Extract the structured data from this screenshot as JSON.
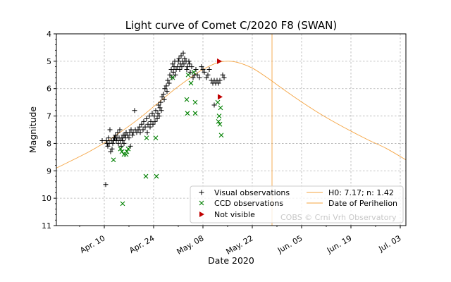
{
  "chart_data": {
    "type": "scatter",
    "title": "Light curve of Comet C/2020 F8 (SWAN)",
    "xlabel": "Date 2020",
    "ylabel": "Magnitude",
    "x_reference_date": "2020-04-10",
    "x_units": "days since 2020-04-10",
    "xlim": [
      -13.6,
      85.6
    ],
    "ylim": [
      11,
      4
    ],
    "y_inverted": true,
    "grid": true,
    "x_ticks": [
      {
        "day": 0,
        "label": "Apr. 10"
      },
      {
        "day": 14,
        "label": "Apr. 24"
      },
      {
        "day": 28,
        "label": "May. 08"
      },
      {
        "day": 42,
        "label": "May. 22"
      },
      {
        "day": 56,
        "label": "Jun. 05"
      },
      {
        "day": 70,
        "label": "Jun. 19"
      },
      {
        "day": 84,
        "label": "Jul. 03"
      }
    ],
    "y_ticks": [
      4,
      5,
      6,
      7,
      8,
      9,
      10,
      11
    ],
    "legend_placement": "bottom-right",
    "watermark": "COBS © Crni Vrh Observatory",
    "series": [
      {
        "name": "Visual observations",
        "marker": "plus",
        "color": "#000000",
        "points": [
          [
            -0.6,
            7.9
          ],
          [
            0.4,
            9.5
          ],
          [
            0.6,
            7.9
          ],
          [
            0.8,
            8.0
          ],
          [
            1.0,
            8.1
          ],
          [
            1.2,
            7.8
          ],
          [
            1.4,
            8.0
          ],
          [
            1.6,
            7.5
          ],
          [
            1.8,
            8.3
          ],
          [
            2.0,
            7.9
          ],
          [
            2.2,
            8.2
          ],
          [
            2.4,
            8.0
          ],
          [
            2.6,
            7.9
          ],
          [
            2.8,
            7.8
          ],
          [
            3.0,
            7.8
          ],
          [
            3.2,
            7.7
          ],
          [
            3.4,
            7.9
          ],
          [
            3.6,
            7.8
          ],
          [
            3.8,
            7.6
          ],
          [
            4.0,
            8.0
          ],
          [
            4.2,
            7.8
          ],
          [
            4.4,
            7.5
          ],
          [
            4.6,
            7.9
          ],
          [
            4.8,
            8.1
          ],
          [
            5.0,
            7.8
          ],
          [
            5.2,
            7.9
          ],
          [
            5.4,
            7.7
          ],
          [
            5.6,
            8.0
          ],
          [
            5.8,
            7.7
          ],
          [
            6.0,
            7.8
          ],
          [
            6.2,
            7.6
          ],
          [
            6.6,
            7.7
          ],
          [
            7.0,
            7.8
          ],
          [
            7.2,
            7.6
          ],
          [
            7.4,
            8.1
          ],
          [
            7.6,
            7.5
          ],
          [
            8.0,
            7.7
          ],
          [
            8.2,
            7.6
          ],
          [
            8.6,
            6.8
          ],
          [
            8.8,
            7.5
          ],
          [
            9.2,
            7.6
          ],
          [
            9.6,
            7.5
          ],
          [
            10.0,
            7.4
          ],
          [
            10.2,
            7.6
          ],
          [
            10.6,
            7.3
          ],
          [
            11.0,
            7.5
          ],
          [
            11.2,
            7.2
          ],
          [
            11.6,
            7.4
          ],
          [
            12.0,
            7.1
          ],
          [
            12.2,
            7.6
          ],
          [
            12.4,
            7.3
          ],
          [
            12.8,
            7.0
          ],
          [
            13.0,
            7.4
          ],
          [
            13.2,
            7.2
          ],
          [
            13.6,
            6.9
          ],
          [
            13.8,
            7.3
          ],
          [
            14.2,
            7.0
          ],
          [
            14.4,
            7.2
          ],
          [
            14.6,
            6.8
          ],
          [
            15.0,
            7.1
          ],
          [
            15.2,
            6.9
          ],
          [
            15.4,
            6.6
          ],
          [
            15.6,
            7.0
          ],
          [
            15.8,
            6.7
          ],
          [
            16.0,
            6.5
          ],
          [
            16.2,
            6.8
          ],
          [
            16.4,
            6.3
          ],
          [
            16.8,
            6.2
          ],
          [
            17.0,
            6.4
          ],
          [
            17.2,
            6.0
          ],
          [
            17.6,
            5.9
          ],
          [
            17.8,
            6.1
          ],
          [
            18.0,
            5.7
          ],
          [
            18.4,
            5.8
          ],
          [
            18.6,
            5.5
          ],
          [
            19.0,
            5.3
          ],
          [
            19.2,
            5.6
          ],
          [
            19.4,
            5.1
          ],
          [
            19.6,
            5.4
          ],
          [
            19.8,
            5.2
          ],
          [
            20.0,
            5.0
          ],
          [
            20.2,
            5.5
          ],
          [
            20.4,
            5.3
          ],
          [
            20.8,
            5.2
          ],
          [
            21.0,
            5.0
          ],
          [
            21.2,
            4.9
          ],
          [
            21.4,
            5.3
          ],
          [
            21.6,
            5.1
          ],
          [
            21.8,
            4.8
          ],
          [
            22.0,
            5.2
          ],
          [
            22.2,
            5.0
          ],
          [
            22.4,
            4.7
          ],
          [
            22.6,
            5.1
          ],
          [
            22.8,
            4.9
          ],
          [
            23.2,
            5.0
          ],
          [
            23.4,
            5.3
          ],
          [
            23.6,
            5.2
          ],
          [
            24.0,
            5.0
          ],
          [
            24.2,
            5.1
          ],
          [
            24.4,
            5.4
          ],
          [
            24.8,
            5.2
          ],
          [
            25.2,
            5.6
          ],
          [
            25.6,
            5.5
          ],
          [
            26.0,
            5.3
          ],
          [
            26.4,
            5.5
          ],
          [
            27.0,
            5.6
          ],
          [
            27.6,
            5.2
          ],
          [
            28.0,
            5.3
          ],
          [
            28.4,
            5.4
          ],
          [
            29.0,
            5.6
          ],
          [
            29.4,
            5.5
          ],
          [
            29.8,
            5.3
          ],
          [
            30.4,
            5.7
          ],
          [
            30.8,
            5.8
          ],
          [
            31.2,
            5.7
          ],
          [
            31.6,
            5.8
          ],
          [
            32.0,
            5.7
          ],
          [
            32.4,
            5.8
          ],
          [
            32.8,
            5.7
          ],
          [
            33.6,
            5.5
          ],
          [
            34.0,
            5.6
          ],
          [
            31.2,
            6.6
          ]
        ]
      },
      {
        "name": "CCD observations",
        "marker": "x",
        "color": "#008000",
        "points": [
          [
            2.6,
            8.6
          ],
          [
            4.6,
            8.2
          ],
          [
            5.0,
            8.3
          ],
          [
            5.2,
            10.2
          ],
          [
            5.6,
            8.4
          ],
          [
            6.2,
            8.4
          ],
          [
            6.4,
            8.3
          ],
          [
            6.8,
            8.2
          ],
          [
            11.8,
            9.2
          ],
          [
            12.0,
            7.8
          ],
          [
            14.6,
            7.8
          ],
          [
            14.8,
            9.2
          ],
          [
            19.4,
            5.6
          ],
          [
            23.4,
            6.4
          ],
          [
            23.8,
            5.5
          ],
          [
            23.6,
            6.9
          ],
          [
            24.6,
            5.8
          ],
          [
            25.4,
            5.4
          ],
          [
            25.8,
            6.5
          ],
          [
            25.8,
            6.9
          ],
          [
            32.2,
            6.5
          ],
          [
            32.6,
            7.0
          ],
          [
            32.4,
            7.2
          ],
          [
            32.8,
            7.3
          ],
          [
            33.0,
            6.7
          ],
          [
            33.2,
            7.7
          ]
        ]
      },
      {
        "name": "Not visible",
        "marker": "triangle-right",
        "color": "#c00000",
        "points": [
          [
            32.6,
            5.0
          ],
          [
            32.8,
            6.3
          ]
        ]
      }
    ],
    "model_curve": {
      "name": "H0: 7.17; n: 1.42",
      "color": "#f5a442",
      "H0": 7.17,
      "n": 1.42,
      "points": [
        [
          -13.6,
          8.9
        ],
        [
          -5,
          8.35
        ],
        [
          0,
          7.98
        ],
        [
          5,
          7.55
        ],
        [
          10,
          7.08
        ],
        [
          15,
          6.55
        ],
        [
          20,
          6.02
        ],
        [
          25,
          5.55
        ],
        [
          28,
          5.3
        ],
        [
          32,
          5.06
        ],
        [
          35,
          5.0
        ],
        [
          38,
          5.05
        ],
        [
          42,
          5.25
        ],
        [
          46,
          5.58
        ],
        [
          50,
          5.95
        ],
        [
          55,
          6.4
        ],
        [
          60,
          6.82
        ],
        [
          65,
          7.2
        ],
        [
          70,
          7.55
        ],
        [
          75,
          7.88
        ],
        [
          80,
          8.18
        ],
        [
          85.6,
          8.6
        ]
      ]
    },
    "perihelion": {
      "name": "Date of Perihelion",
      "day": 47.6,
      "color": "#f5a442"
    }
  },
  "legend": {
    "visual": "Visual observations",
    "ccd": "CCD observations",
    "not_visible": "Not visible",
    "model": "H0: 7.17; n: 1.42",
    "perihelion": "Date of Perihelion"
  }
}
